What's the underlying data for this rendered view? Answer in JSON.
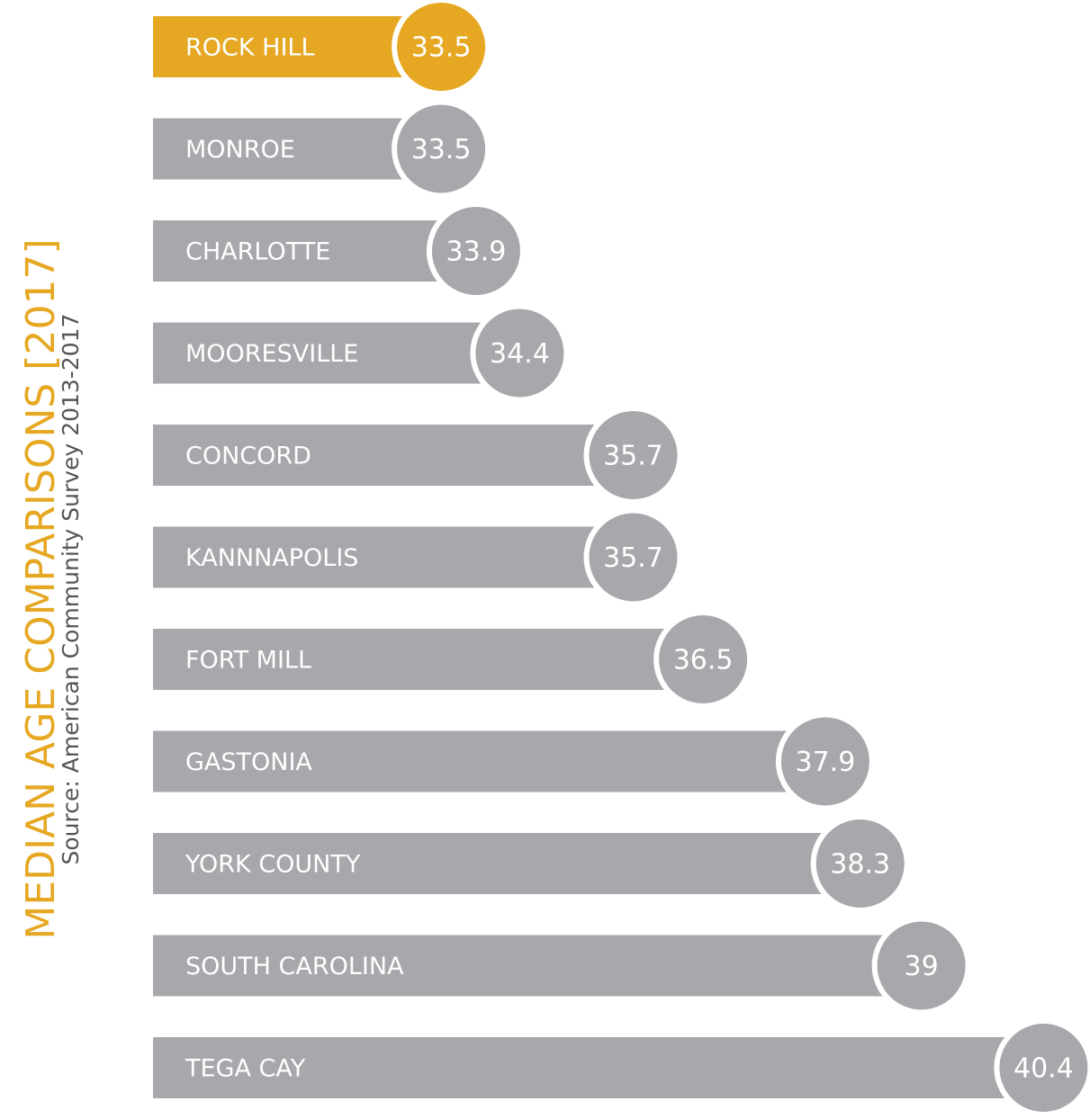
{
  "chart_data": {
    "type": "bar",
    "orientation": "horizontal",
    "title": "MEDIAN AGE COMPARISONS [2017]",
    "subtitle": "Source:  American Community Survey 2013-2017",
    "categories": [
      "ROCK HILL",
      "MONROE",
      "CHARLOTTE",
      "MOORESVILLE",
      "CONCORD",
      "KANNNAPOLIS",
      "FORT MILL",
      "GASTONIA",
      "YORK COUNTY",
      "SOUTH CAROLINA",
      "TEGA CAY"
    ],
    "values": [
      33.5,
      33.5,
      33.9,
      34.4,
      35.7,
      35.7,
      36.5,
      37.9,
      38.3,
      39,
      40.4
    ],
    "color": "#a7a8ab",
    "highlight_color": "#e6a823",
    "highlight_index": 0,
    "xlim": [
      30.2,
      41.2
    ]
  }
}
